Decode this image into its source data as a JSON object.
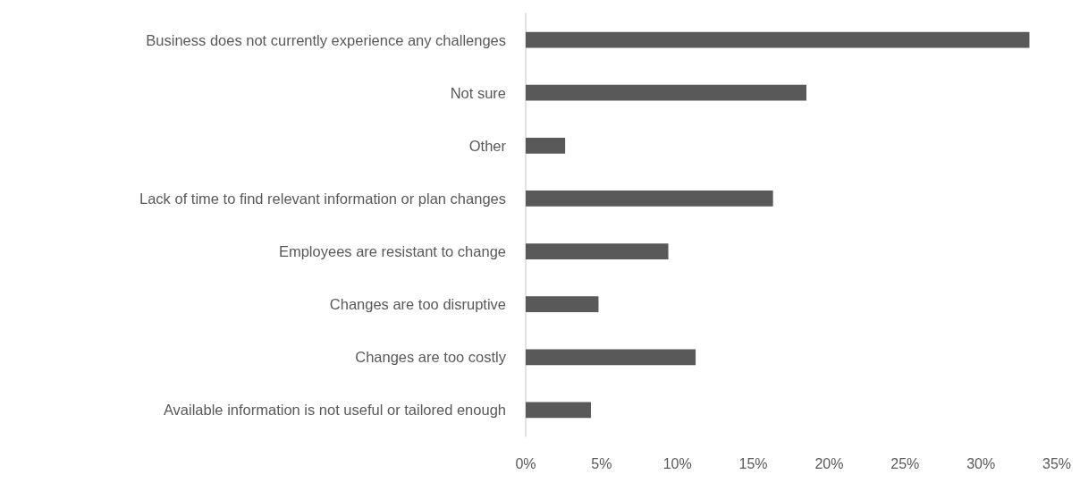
{
  "chart_data": {
    "type": "bar",
    "orientation": "horizontal",
    "categories": [
      "Business does not currently experience any challenges",
      "Not sure",
      "Other",
      "Lack of time to find relevant information or plan changes",
      "Employees are resistant to change",
      "Changes are too disruptive",
      "Changes are too costly",
      "Available information is not useful or tailored enough"
    ],
    "values": [
      33.2,
      18.5,
      2.6,
      16.3,
      9.4,
      4.8,
      11.2,
      4.3
    ],
    "color": "#595959",
    "xlim": [
      0,
      35
    ],
    "xticks": [
      {
        "value": 0,
        "label": "0%"
      },
      {
        "value": 5,
        "label": "5%"
      },
      {
        "value": 10,
        "label": "10%"
      },
      {
        "value": 15,
        "label": "15%"
      },
      {
        "value": 20,
        "label": "20%"
      },
      {
        "value": 25,
        "label": "25%"
      },
      {
        "value": 30,
        "label": "30%"
      },
      {
        "value": 35,
        "label": "35%"
      }
    ],
    "grid": false
  }
}
